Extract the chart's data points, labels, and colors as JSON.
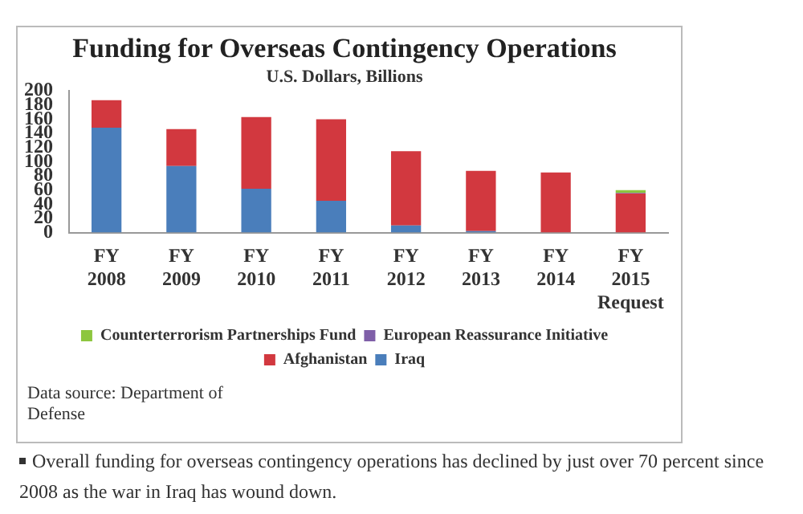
{
  "chart_data": {
    "type": "bar",
    "title": "Funding for Overseas Contingency Operations",
    "subtitle": "U.S. Dollars, Billions",
    "categories": [
      "FY 2008",
      "FY 2009",
      "FY 2010",
      "FY 2011",
      "FY 2012",
      "FY 2013",
      "FY 2014",
      "FY 2015 Request"
    ],
    "stacked": true,
    "series": [
      {
        "name": "Iraq",
        "color": "#4a7ebb",
        "values": [
          148,
          94,
          62,
          45,
          10,
          2,
          0,
          0
        ]
      },
      {
        "name": "Afghanistan",
        "color": "#d2383f",
        "values": [
          39,
          52,
          101,
          115,
          105,
          85,
          85,
          55
        ]
      },
      {
        "name": "European Reassurance Initiative",
        "color": "#7f5fa8",
        "values": [
          0,
          0,
          0,
          0,
          0,
          0,
          0,
          1
        ]
      },
      {
        "name": "Counterterrorism Partnerships Fund",
        "color": "#8dc63f",
        "values": [
          0,
          0,
          0,
          0,
          0,
          0,
          0,
          4
        ]
      }
    ],
    "ylim": [
      0,
      200
    ],
    "yticks": [
      0,
      20,
      40,
      60,
      80,
      100,
      120,
      140,
      160,
      180,
      200
    ],
    "grid": false,
    "legend": "bottom",
    "annotations": [
      "Data source: Department of Defense",
      "Overall funding for overseas contingency operations has declined by just over 70 percent since 2008 as the war in Iraq has wound down."
    ]
  }
}
